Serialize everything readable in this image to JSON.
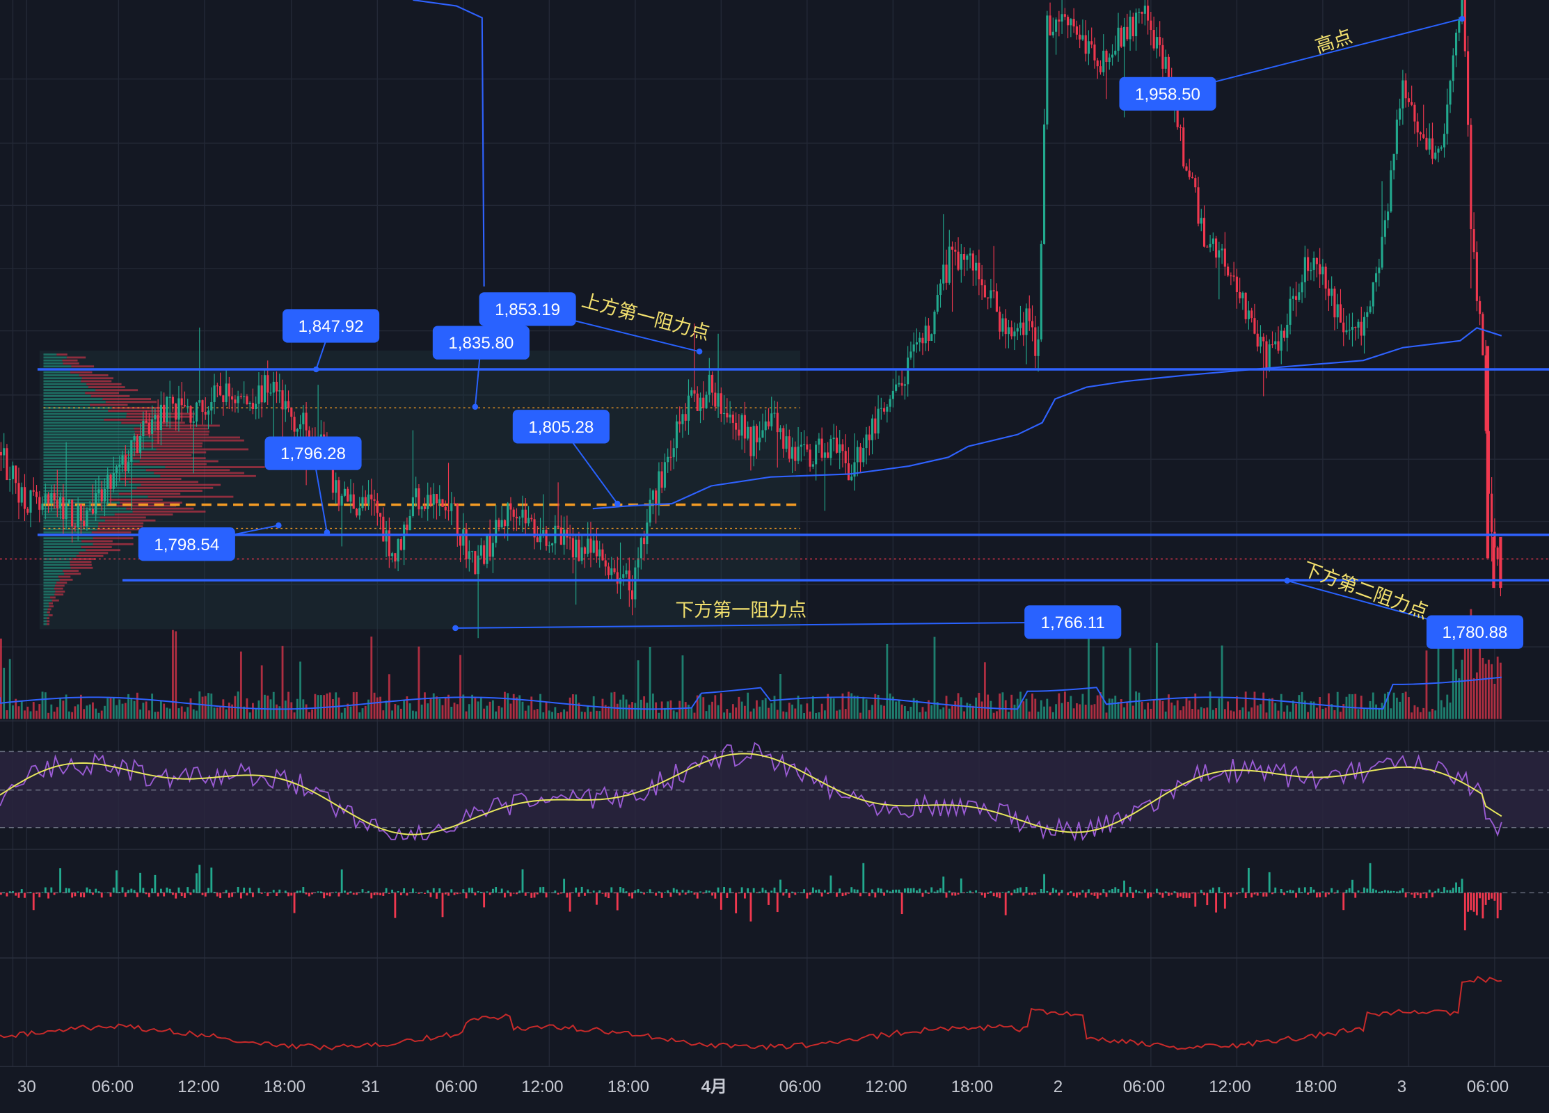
{
  "colors": {
    "background": "#141823",
    "grid": "#232836",
    "up": "#22a98e",
    "down": "#f0384f",
    "level": "#2f62ff",
    "callout": "#2962ff",
    "annotation": "#f2e06e",
    "vwap": "#2f62ff",
    "poc": "#f39b24",
    "rsi": "#9a5bd4",
    "rsi_ma": "#e8e85c",
    "bottom_line": "#c82a2a",
    "axis_text": "#c7cad3"
  },
  "chart_data": {
    "type": "candlestick",
    "x_ticks": [
      "30",
      "06:00",
      "12:00",
      "18:00",
      "31",
      "06:00",
      "12:00",
      "18:00",
      "4月",
      "06:00",
      "12:00",
      "18:00",
      "2",
      "06:00",
      "12:00",
      "18:00",
      "3",
      "06:00"
    ],
    "horizontal_levels": [
      1839.5,
      1800.5,
      1789.8
    ],
    "price_path": [
      [
        0,
        1820
      ],
      [
        20,
        1811
      ],
      [
        40,
        1806
      ],
      [
        60,
        1808
      ],
      [
        80,
        1804
      ],
      [
        100,
        1808
      ],
      [
        125,
        1817
      ],
      [
        150,
        1826
      ],
      [
        175,
        1831
      ],
      [
        200,
        1829
      ],
      [
        225,
        1834
      ],
      [
        250,
        1832
      ],
      [
        275,
        1836
      ],
      [
        300,
        1827
      ],
      [
        325,
        1824
      ],
      [
        340,
        1810
      ],
      [
        360,
        1808
      ],
      [
        380,
        1807
      ],
      [
        400,
        1795
      ],
      [
        420,
        1810
      ],
      [
        440,
        1808
      ],
      [
        460,
        1805
      ],
      [
        480,
        1793
      ],
      [
        500,
        1800
      ],
      [
        520,
        1808
      ],
      [
        540,
        1802
      ],
      [
        560,
        1800
      ],
      [
        580,
        1798
      ],
      [
        600,
        1796
      ],
      [
        620,
        1793
      ],
      [
        640,
        1787
      ],
      [
        660,
        1808
      ],
      [
        680,
        1822
      ],
      [
        700,
        1832
      ],
      [
        720,
        1835
      ],
      [
        740,
        1830
      ],
      [
        760,
        1822
      ],
      [
        780,
        1830
      ],
      [
        800,
        1820
      ],
      [
        820,
        1818
      ],
      [
        840,
        1822
      ],
      [
        860,
        1815
      ],
      [
        880,
        1825
      ],
      [
        900,
        1830
      ],
      [
        920,
        1840
      ],
      [
        940,
        1848
      ],
      [
        960,
        1865
      ],
      [
        980,
        1866
      ],
      [
        1000,
        1858
      ],
      [
        1020,
        1847
      ],
      [
        1040,
        1852
      ],
      [
        1050,
        1840
      ],
      [
        1060,
        1920
      ],
      [
        1080,
        1924
      ],
      [
        1100,
        1915
      ],
      [
        1120,
        1912
      ],
      [
        1140,
        1920
      ],
      [
        1160,
        1922
      ],
      [
        1180,
        1910
      ],
      [
        1200,
        1888
      ],
      [
        1220,
        1870
      ],
      [
        1240,
        1866
      ],
      [
        1260,
        1855
      ],
      [
        1280,
        1842
      ],
      [
        1300,
        1848
      ],
      [
        1320,
        1865
      ],
      [
        1340,
        1860
      ],
      [
        1360,
        1850
      ],
      [
        1380,
        1848
      ],
      [
        1400,
        1870
      ],
      [
        1420,
        1908
      ],
      [
        1440,
        1895
      ],
      [
        1460,
        1890
      ],
      [
        1475,
        1920
      ],
      [
        1480,
        1930
      ],
      [
        1490,
        1870
      ],
      [
        1500,
        1845
      ],
      [
        1505,
        1820
      ],
      [
        1510,
        1798
      ],
      [
        1520,
        1789
      ]
    ],
    "callouts": [
      {
        "label": "1,847.92",
        "value": 1847.92
      },
      {
        "label": "1,835.80",
        "value": 1835.8
      },
      {
        "label": "1,853.19",
        "value": 1853.19
      },
      {
        "label": "1,805.28",
        "value": 1805.28
      },
      {
        "label": "1,796.28",
        "value": 1796.28
      },
      {
        "label": "1,798.54",
        "value": 1798.54
      },
      {
        "label": "1,958.50",
        "value": 1958.5
      },
      {
        "label": "1,766.11",
        "value": 1766.11
      },
      {
        "label": "1,780.88",
        "value": 1780.88
      }
    ],
    "annotations": [
      "上方第一阻力点",
      "下方第一阻力点",
      "高点",
      "下方第二阻力点"
    ],
    "panels": [
      "price",
      "volume",
      "rsi",
      "histogram",
      "line"
    ],
    "grid": true
  }
}
